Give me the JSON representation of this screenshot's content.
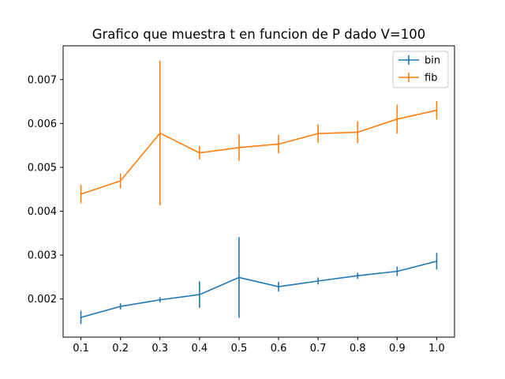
{
  "chart_data": {
    "type": "line",
    "title": "Grafico que muestra t en funcion de P dado V=100",
    "xlabel": "",
    "ylabel": "",
    "x": [
      0.1,
      0.2,
      0.3,
      0.4,
      0.5,
      0.6,
      0.7,
      0.8,
      0.9,
      1.0
    ],
    "x_ticks": [
      "0.1",
      "0.2",
      "0.3",
      "0.4",
      "0.5",
      "0.6",
      "0.7",
      "0.8",
      "0.9",
      "1.0"
    ],
    "y_ticks": [
      "0.002",
      "0.003",
      "0.004",
      "0.005",
      "0.006",
      "0.007"
    ],
    "xlim": [
      0.055,
      1.045
    ],
    "ylim": [
      0.00113,
      0.00777
    ],
    "grid": false,
    "legend_position": "top-right",
    "series": [
      {
        "name": "bin",
        "color": "#1f77b4",
        "values": [
          0.00158,
          0.00183,
          0.00198,
          0.0021,
          0.00249,
          0.00228,
          0.00241,
          0.00253,
          0.00263,
          0.00286
        ],
        "errors": [
          0.00015,
          7e-05,
          6e-05,
          0.0003,
          0.00092,
          0.00011,
          8e-05,
          7e-05,
          0.00011,
          0.00019
        ]
      },
      {
        "name": "fib",
        "color": "#ff7f0e",
        "values": [
          0.00439,
          0.00469,
          0.00578,
          0.00533,
          0.00545,
          0.00553,
          0.00577,
          0.0058,
          0.0061,
          0.0063
        ],
        "errors": [
          0.00021,
          0.00017,
          0.00165,
          0.00015,
          0.0003,
          0.00021,
          0.00021,
          0.00025,
          0.00033,
          0.00021
        ]
      }
    ]
  }
}
